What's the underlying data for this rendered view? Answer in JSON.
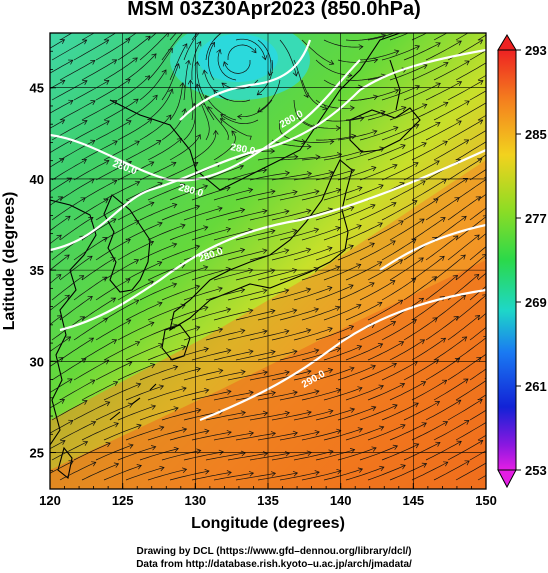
{
  "title": "MSM 03Z30Apr2023 (850.0hPa)",
  "xaxis": {
    "label": "Longitude (degrees)",
    "range": [
      120,
      150
    ],
    "ticks": [
      "120",
      "125",
      "130",
      "135",
      "140",
      "145",
      "150"
    ]
  },
  "yaxis": {
    "label": "Latitude  (degrees)",
    "range": [
      23,
      48
    ],
    "ticks": [
      "25",
      "30",
      "35",
      "40",
      "45"
    ]
  },
  "colorbar": {
    "labels": [
      "293",
      "285",
      "277",
      "269",
      "261",
      "253"
    ],
    "range": [
      253,
      293
    ]
  },
  "contour_labels": [
    "280.0",
    "280.0",
    "280.0",
    "280.0",
    "280.0",
    "290.0"
  ],
  "credits": {
    "line1": "Drawing by DCL (https://www.gfd–dennou.org/library/dcl/)",
    "line2": "Data from http://database.rish.kyoto–u.ac.jp/arch/jmadata/"
  }
}
